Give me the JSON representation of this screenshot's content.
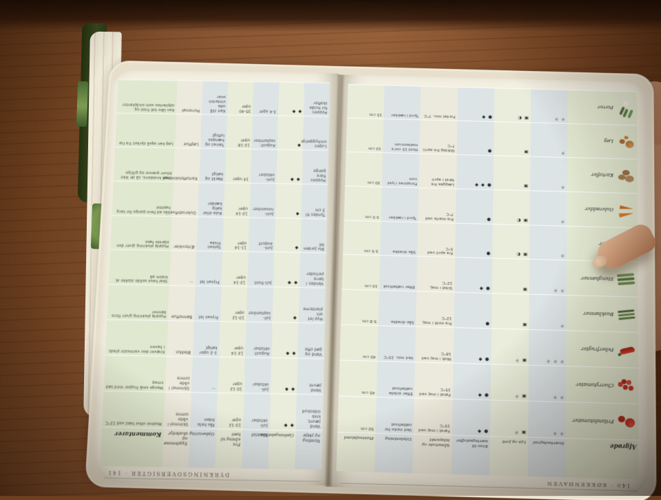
{
  "scene": {
    "description_colors": {
      "wood": "#8a5733",
      "page": "#f4f0e2",
      "cover_green": "#3a4a22",
      "band_blue": "#dde4e6",
      "band_green": "#e9ecd9",
      "band_cream": "#eceadc",
      "skin": "#d3a283"
    },
    "icons": {
      "sun_icon": "☼",
      "soil_icon": "▣",
      "half_shade_icon": "◐",
      "fertilizer_icon": "◆",
      "seed_icon": "●"
    }
  },
  "book": {
    "page140": {
      "running_head": "140 · KØKKENHAVEN",
      "afgrode_header": "Afgrøde",
      "headers": [
        {
          "label": "Sværhedsgrad"
        },
        {
          "label": "Lys og jord"
        },
        {
          "label": "Krav til næringsstoffer"
        },
        {
          "label": "Såmetode og tidspunkt"
        },
        {
          "label": "Udplantning"
        },
        {
          "label": "Planteafstand"
        }
      ],
      "rows": [
        {
          "label": "Frilandstomater",
          "veg": "tomato",
          "icon_name": "tomato-icon",
          "cells": [
            "☼ ☼",
            "▣ ☼",
            "● ◆",
            "Først i maj ved 15°C",
            "Ved risiko for nattefrost",
            "50 cm"
          ]
        },
        {
          "label": "Cherrytomater",
          "veg": "cherry",
          "icon_name": "cherry-tomato-icon",
          "cells": [
            "☼ ☼",
            "▣ ☼",
            "● ◆",
            "Først i maj ved 15°C",
            "Efter sidste nattefrost",
            "45 cm"
          ]
        },
        {
          "label": "Peberfrugter",
          "veg": "pepper",
          "icon_name": "pepper-icon",
          "cells": [
            "☼ ☼ ☼",
            "▣ ☼",
            "● ◆",
            "Midt i maj ved 18°C",
            "Ved min. 15°C",
            "40 cm"
          ]
        },
        {
          "label": "Buskbønner",
          "veg": "bushbean",
          "icon_name": "bush-bean-icon",
          "cells": [
            "☼",
            "▣",
            "●",
            "Fra midt i maj, 12°C",
            "Sås direkte",
            "5-8 cm"
          ]
        },
        {
          "label": "Stangbønner",
          "veg": "polebean",
          "icon_name": "pole-bean-icon",
          "cells": [
            "☼ ☼",
            "▣",
            "● ◆",
            "Sidst i maj, 12°C",
            "Efter nattefrost",
            "10 cm"
          ]
        },
        {
          "label": "Ærter",
          "veg": "pea",
          "icon_name": "pea-pod-icon",
          "cells": [
            "☼",
            "▣ ◐",
            "●",
            "Fra april ved 5°C",
            "Sås direkte",
            "3-5 cm"
          ]
        },
        {
          "label": "Gulerødder",
          "veg": "carrot",
          "icon_name": "carrot-icon",
          "cells": [
            "☼",
            "▣ ◐",
            "●",
            "Fra marts ved 7°C",
            "Tynd i rækker",
            "3-5 cm"
          ]
        },
        {
          "label": "Kartofler",
          "veg": "potato",
          "icon_name": "potato-icon",
          "cells": [
            "☼",
            "▣",
            "● ◆ ◆",
            "Lægges fra først i april",
            "Forspires i lyst rum",
            "30 cm"
          ]
        },
        {
          "label": "Løg",
          "veg": "onion",
          "icon_name": "onion-icon",
          "cells": [
            "☼",
            "▣",
            "●",
            "Stikløg fra april, 7°C",
            "Hold 15 cm's mellemrum",
            "10 cm"
          ]
        },
        {
          "label": "Porrer",
          "veg": "leek",
          "icon_name": "leek-icon",
          "cells": [
            "☼ ☼",
            "▣ ◐",
            "● ◆",
            "Fordel min. 7°C",
            "Tynd i rækker",
            "15 cm"
          ]
        }
      ]
    },
    "page141": {
      "running_head": "DYRKNINGSOVERSIGTER · 141",
      "kommentarer_header": "Kommentarer",
      "headers": [
        {
          "label": "Vanding og pleje"
        },
        {
          "label": "Gødningsbehov"
        },
        {
          "label": "Høsttid"
        },
        {
          "label": "Fra såning til høst"
        },
        {
          "label": "Opbevaring"
        },
        {
          "label": "Sygdomme og skadedyr"
        }
      ],
      "rows": [
        {
          "cells": [
            "Vand jævnt, knib sideskud",
            "◆ ◆",
            "Juli-oktober",
            "10-12 uger",
            "Fås hele tiden",
            "Skimmel i våde somre",
            "Modner efter høst ved 15°C"
          ]
        },
        {
          "cells": [
            "Vand jævnt",
            "◆ ◆",
            "Juli-oktober",
            "10-12 uger",
            "—",
            "Skimmel i våde somre",
            "Mange små frugter med sød smag"
          ]
        },
        {
          "cells": [
            "Vand og gød ofte",
            "◆ ◆",
            "August-oktober",
            "12-14 uger",
            "1-2 uger køligt",
            "Bladlus",
            "Kræver den varmeste plads i haven"
          ]
        },
        {
          "cells": [
            "Hyp let om planterne",
            "◆",
            "Juli-september",
            "10-12 uger",
            "Fryses let",
            "Bønneflue",
            "Hyppig plukning giver flere bønner"
          ]
        },
        {
          "cells": [
            "Vandes i tørre perioder",
            "◆ ◆",
            "Juli-frost",
            "12-14 uger",
            "Fryses let",
            "—",
            "Skal have solide stokke at klatre på"
          ]
        },
        {
          "cells": [
            "Riv jorden let",
            "◆",
            "Juni-august",
            "11-14 uger",
            "Spises friske",
            "Ærtevikler",
            "Hyppig plukning giver den største høst"
          ]
        },
        {
          "cells": [
            "Tyndes til 3 cm",
            "◆",
            "Juni-november",
            "12-14 uger",
            "Kule eller kølig kælder",
            "Gulerodsflue",
            "Sås ad flere gange for lang høsttid"
          ]
        },
        {
          "cells": [
            "Hyppes flere gange",
            "◆ ◆",
            "Juni-oktober",
            "14 uger",
            "Mørkt og køligt",
            "Kartoffelskimmel",
            "Dæk knoldene, så de ikke bliver grønne og giftige"
          ]
        },
        {
          "cells": [
            "Luges omhyggeligt",
            "◆",
            "August-september",
            "12-18 uger",
            "Tørres og hænges luftigt",
            "Løgflue",
            "Løg kan også dyrkes fra frø"
          ]
        },
        {
          "cells": [
            "Hyppes for hvide skafter",
            "◆ ◆",
            "3-4 uger",
            "35-40 uger",
            "Kan stå ude vinteren over",
            "Porremøl",
            "Kan tåle lidt frost og udplantes som småplanter"
          ]
        }
      ]
    }
  }
}
